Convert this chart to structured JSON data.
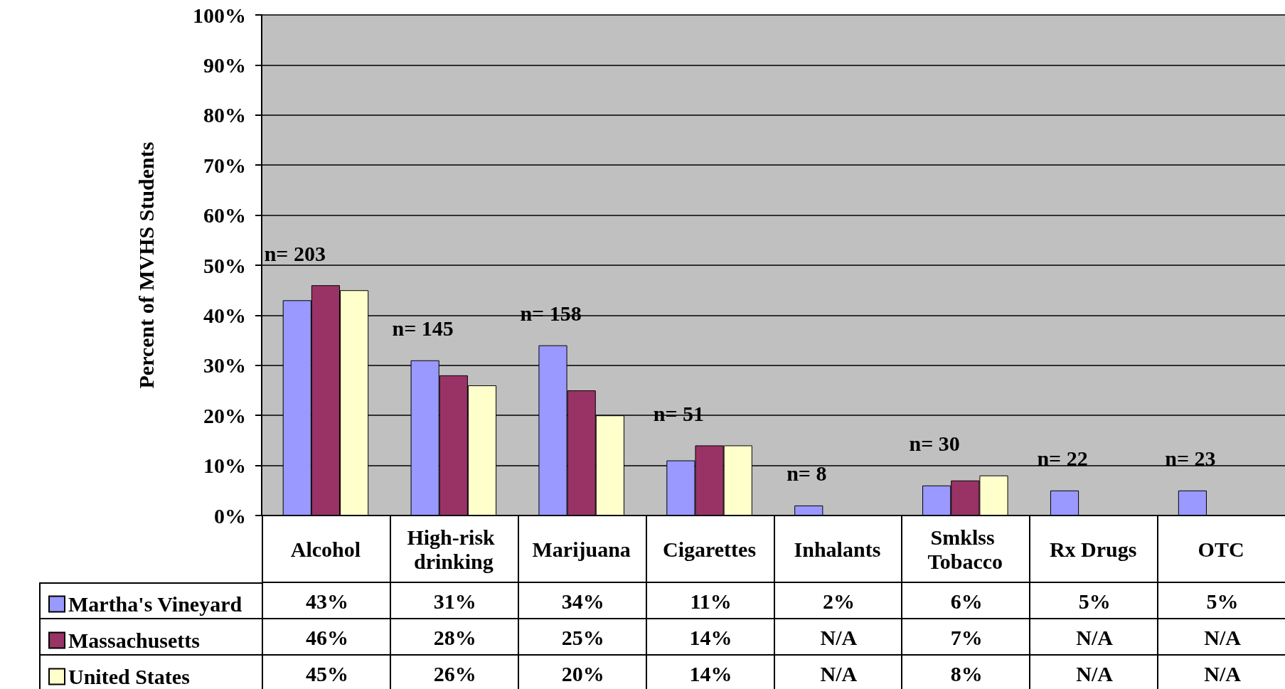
{
  "chart_data": {
    "type": "bar",
    "ylabel": "Percent of MVHS Students",
    "categories": [
      "Alcohol",
      "High-risk drinking",
      "Marijuana",
      "Cigarettes",
      "Inhalants",
      "Smklss Tobacco",
      "Rx Drugs",
      "OTC"
    ],
    "series": [
      {
        "name": "Martha's Vineyard",
        "color": "#9999ff",
        "values": [
          43,
          31,
          34,
          11,
          2,
          6,
          5,
          5
        ],
        "value_labels": [
          "43%",
          "31%",
          "34%",
          "11%",
          "2%",
          "6%",
          "5%",
          "5%"
        ]
      },
      {
        "name": "Massachusetts",
        "color": "#993366",
        "values": [
          46,
          28,
          25,
          14,
          null,
          7,
          null,
          null
        ],
        "value_labels": [
          "46%",
          "28%",
          "25%",
          "14%",
          "N/A",
          "7%",
          "N/A",
          "N/A"
        ]
      },
      {
        "name": "United States",
        "color": "#ffffcc",
        "values": [
          45,
          26,
          20,
          14,
          null,
          8,
          null,
          null
        ],
        "value_labels": [
          "45%",
          "26%",
          "20%",
          "14%",
          "N/A",
          "8%",
          "N/A",
          "N/A"
        ]
      }
    ],
    "ylim": [
      0,
      100
    ],
    "yticks": [
      {
        "value": 0,
        "label": "0%"
      },
      {
        "value": 10,
        "label": "10%"
      },
      {
        "value": 20,
        "label": "20%"
      },
      {
        "value": 30,
        "label": "30%"
      },
      {
        "value": 40,
        "label": "40%"
      },
      {
        "value": 50,
        "label": "50%"
      },
      {
        "value": 60,
        "label": "60%"
      },
      {
        "value": 70,
        "label": "70%"
      },
      {
        "value": 80,
        "label": "80%"
      },
      {
        "value": 90,
        "label": "90%"
      },
      {
        "value": 100,
        "label": "100%"
      }
    ],
    "grid": "y",
    "legend": "bottom",
    "annotations": [
      "n= 203",
      "n= 145",
      "n= 158",
      "n= 51",
      "n= 8",
      "n= 30",
      "n= 22",
      "n= 23"
    ]
  }
}
